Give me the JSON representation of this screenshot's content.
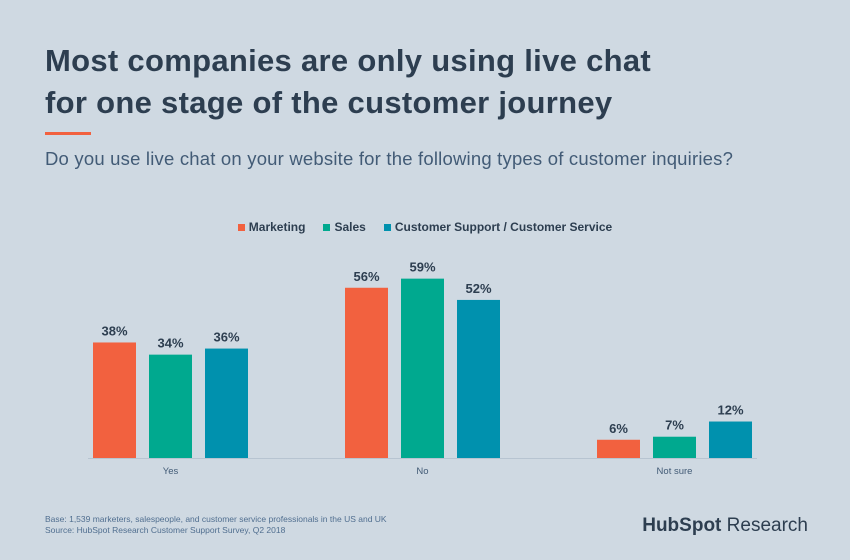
{
  "header": {
    "title_line1": "Most companies are only using live chat",
    "title_line2": "for one stage of the customer journey",
    "subtitle": "Do you use live chat on your website for the following types of customer inquiries?"
  },
  "chart_data": {
    "type": "bar",
    "categories": [
      "Yes",
      "No",
      "Not sure"
    ],
    "series": [
      {
        "name": "Marketing",
        "color": "#f2613f",
        "values": [
          38,
          56,
          6
        ]
      },
      {
        "name": "Sales",
        "color": "#00a98f",
        "values": [
          34,
          59,
          7
        ]
      },
      {
        "name": "Customer Support / Customer Service",
        "color": "#0091ae",
        "values": [
          36,
          52,
          12
        ]
      }
    ],
    "value_suffix": "%",
    "ylim": [
      0,
      60
    ],
    "grid": false,
    "legend_position": "top-center",
    "title": "",
    "xlabel": "",
    "ylabel": ""
  },
  "footer": {
    "base": "Base: 1,539 marketers, salespeople, and customer service professionals in the US and UK",
    "source": "Source: HubSpot Research Customer Support Survey, Q2 2018"
  },
  "logo": {
    "brand": "HubSpot",
    "suffix": "Research"
  }
}
